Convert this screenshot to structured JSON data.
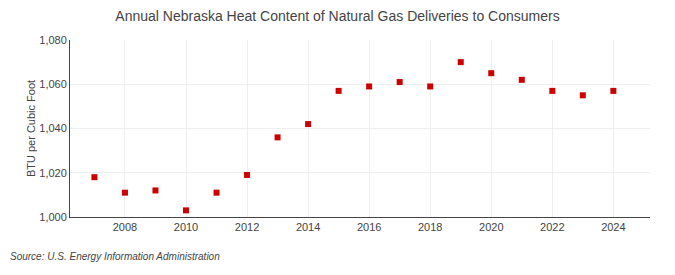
{
  "chart_data": {
    "type": "scatter",
    "title": "Annual Nebraska Heat Content of Natural Gas Deliveries to Consumers",
    "ylabel": "BTU per Cubic Foot",
    "source": "Source: U.S. Energy Information Administration",
    "x": [
      2007,
      2008,
      2009,
      2010,
      2011,
      2012,
      2013,
      2014,
      2015,
      2016,
      2017,
      2018,
      2019,
      2020,
      2021,
      2022,
      2023,
      2024
    ],
    "values": [
      1018,
      1011,
      1012,
      1003,
      1011,
      1019,
      1036,
      1042,
      1057,
      1059,
      1061,
      1059,
      1070,
      1065,
      1062,
      1057,
      1055,
      1057
    ],
    "color": "#cc0000",
    "marker": "square",
    "xlim": [
      2006.2,
      2025.2
    ],
    "xticks": [
      2008,
      2010,
      2012,
      2014,
      2016,
      2018,
      2020,
      2022,
      2024
    ],
    "ylim": [
      1000,
      1080
    ],
    "yticks": [
      {
        "value": 1000,
        "label": "1,000"
      },
      {
        "value": 1020,
        "label": "1,020"
      },
      {
        "value": 1040,
        "label": "1,040"
      },
      {
        "value": 1060,
        "label": "1,060"
      },
      {
        "value": 1080,
        "label": "1,080"
      }
    ],
    "grid": true
  }
}
